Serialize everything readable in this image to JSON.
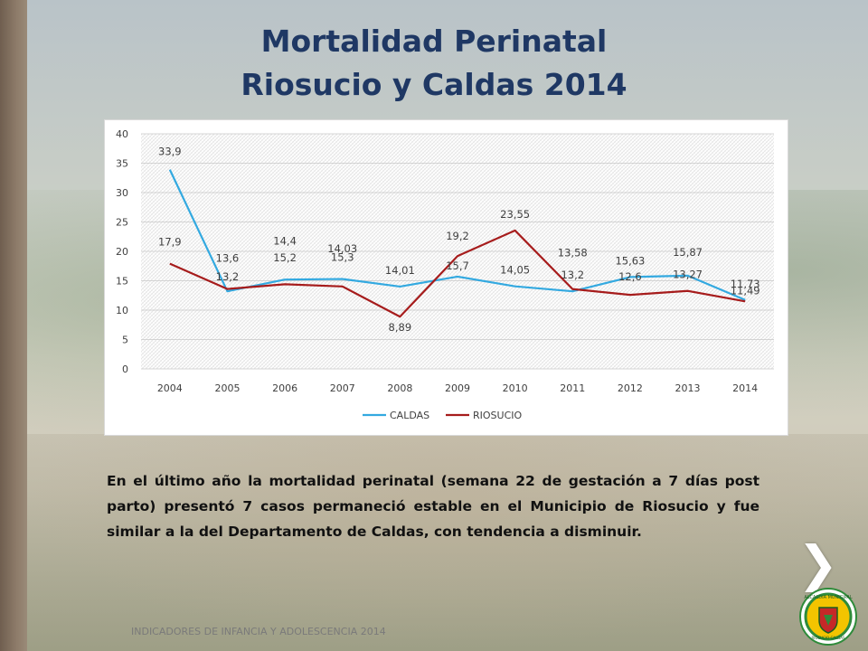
{
  "slide": {
    "title_line1": "Mortalidad Perinatal",
    "title_line2": "Riosucio y Caldas 2014",
    "body_text": "En el último año la mortalidad perinatal (semana  22 de gestación a 7 días post parto) presentó 7 casos permaneció estable en el Municipio de Riosucio y  fue similar a la del Departamento de Caldas, con tendencia a disminuir.",
    "footer": "INDICADORES DE INFANCIA Y ADOLESCENCIA 2014",
    "next_icon": "❯",
    "seal_text": "ALCALDIA MUNICIPAL",
    "seal_small_text": "RIOSUCIO CALDAS"
  },
  "chart_data": {
    "type": "line",
    "title": "",
    "xlabel": "",
    "ylabel": "",
    "categories": [
      "2004",
      "2005",
      "2006",
      "2007",
      "2008",
      "2009",
      "2010",
      "2011",
      "2012",
      "2013",
      "2014"
    ],
    "ylim": [
      0,
      40
    ],
    "yticks": [
      "0",
      "5",
      "10",
      "15",
      "20",
      "25",
      "30",
      "35",
      "40"
    ],
    "grid": true,
    "legend": "bottom",
    "series": [
      {
        "name": "CALDAS",
        "color": "#33a9e0",
        "values": [
          33.9,
          13.2,
          15.2,
          15.3,
          14.01,
          15.7,
          14.05,
          13.2,
          15.63,
          15.87,
          11.73
        ],
        "labels": [
          "33,9",
          "13,2",
          "15,2",
          "15,3",
          "14,01",
          "15,7",
          "14,05",
          "13,2",
          "15,63",
          "15,87",
          "11,73"
        ]
      },
      {
        "name": "RIOSUCIO",
        "color": "#a61c1c",
        "values": [
          17.9,
          13.6,
          14.4,
          14.03,
          8.89,
          19.2,
          23.55,
          13.58,
          12.6,
          13.27,
          11.49
        ],
        "labels": [
          "17,9",
          "13,6",
          "14,4",
          "14,03",
          "8,89",
          "19,2",
          "23,55",
          "13,58",
          "12,6",
          "13,27",
          "11,49"
        ]
      }
    ]
  }
}
